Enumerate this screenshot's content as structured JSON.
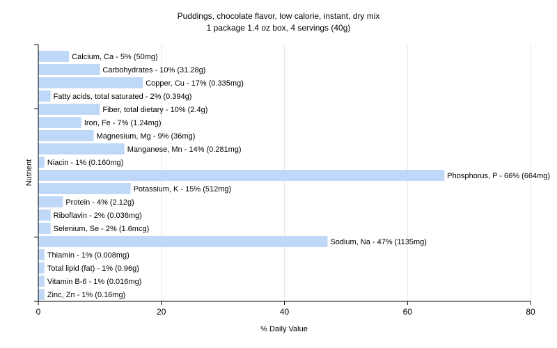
{
  "chart_data": {
    "type": "bar",
    "orientation": "horizontal",
    "title": "Puddings, chocolate flavor, low calorie, instant, dry mix",
    "subtitle": "1 package 1.4 oz box, 4 servings (40g)",
    "xlabel": "% Daily Value",
    "ylabel": "Nutrient",
    "xlim": [
      0,
      80
    ],
    "xticks": [
      0,
      20,
      40,
      60,
      80
    ],
    "grid": true,
    "colors": {
      "bar": "#c0d8f8",
      "grid": "#e6e6e6",
      "axis": "#000000"
    },
    "categories": [
      "Calcium, Ca",
      "Carbohydrates",
      "Copper, Cu",
      "Fatty acids, total saturated",
      "Fiber, total dietary",
      "Iron, Fe",
      "Magnesium, Mg",
      "Manganese, Mn",
      "Niacin",
      "Phosphorus, P",
      "Potassium, K",
      "Protein",
      "Riboflavin",
      "Selenium, Se",
      "Sodium, Na",
      "Thiamin",
      "Total lipid (fat)",
      "Vitamin B-6",
      "Zinc, Zn"
    ],
    "values": [
      5,
      10,
      17,
      2,
      10,
      7,
      9,
      14,
      1,
      66,
      15,
      4,
      2,
      2,
      47,
      1,
      1,
      1,
      1
    ],
    "data_labels": [
      "Calcium, Ca - 5% (50mg)",
      "Carbohydrates - 10% (31.28g)",
      "Copper, Cu - 17% (0.335mg)",
      "Fatty acids, total saturated - 2% (0.394g)",
      "Fiber, total dietary - 10% (2.4g)",
      "Iron, Fe - 7% (1.24mg)",
      "Magnesium, Mg - 9% (36mg)",
      "Manganese, Mn - 14% (0.281mg)",
      "Niacin - 1% (0.160mg)",
      "Phosphorus, P - 66% (664mg)",
      "Potassium, K - 15% (512mg)",
      "Protein - 4% (2.12g)",
      "Riboflavin - 2% (0.036mg)",
      "Selenium, Se - 2% (1.6mcg)",
      "Sodium, Na - 47% (1135mg)",
      "Thiamin - 1% (0.008mg)",
      "Total lipid (fat) - 1% (0.96g)",
      "Vitamin B-6 - 1% (0.016mg)",
      "Zinc, Zn - 1% (0.16mg)"
    ]
  }
}
